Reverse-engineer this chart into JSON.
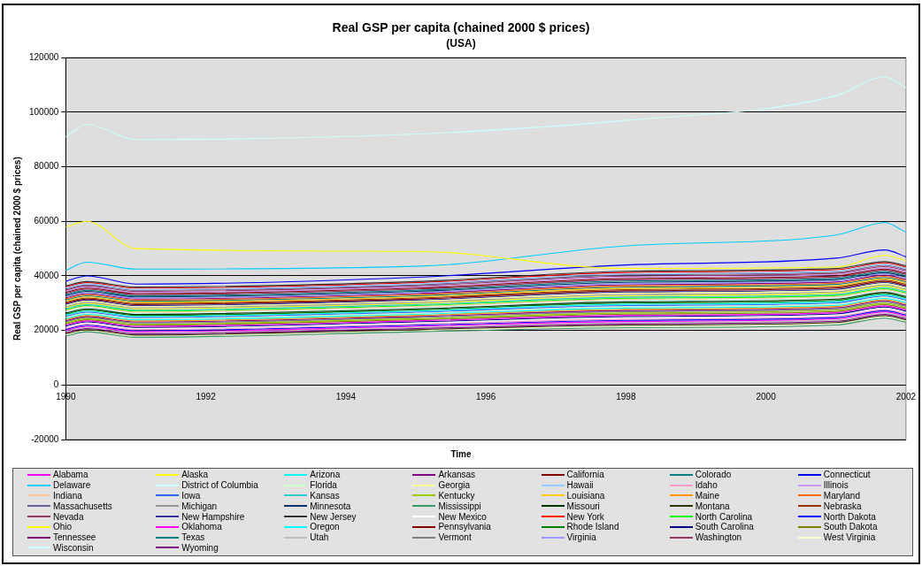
{
  "chart_data": {
    "type": "line",
    "title": "Real GSP per capita (chained 2000 $ prices)",
    "subtitle": "(USA)",
    "xlabel": "Time",
    "ylabel": "Real GSP per capita (chained 2000 $ prices)",
    "x": [
      1990,
      1990.3,
      1991,
      1995,
      1998,
      2001,
      2001.7,
      2002
    ],
    "xlim": [
      1990,
      2002
    ],
    "xticks": [
      1990,
      1992,
      1994,
      1996,
      1998,
      2000,
      2002
    ],
    "ylim": [
      -20000,
      120000
    ],
    "yticks": [
      -20000,
      0,
      20000,
      40000,
      60000,
      80000,
      100000,
      120000
    ],
    "grid": "y",
    "legend": "bottom",
    "marker": "none",
    "line_style": "solid",
    "series": [
      {
        "name": "Alabama",
        "color": "#ff00ff",
        "values": [
          20000,
          21500,
          19500,
          21500,
          23250,
          24250,
          26750,
          25250
        ]
      },
      {
        "name": "Alaska",
        "color": "#ffff00",
        "values": [
          58000,
          60000,
          50000,
          49000,
          42700,
          43200,
          47500,
          45500
        ]
      },
      {
        "name": "Arizona",
        "color": "#00ffff",
        "values": [
          24400,
          25900,
          23900,
          25900,
          28200,
          29200,
          31700,
          30200
        ]
      },
      {
        "name": "Arkansas",
        "color": "#800080",
        "values": [
          19200,
          20700,
          18700,
          20700,
          22350,
          23350,
          25850,
          24350
        ]
      },
      {
        "name": "California",
        "color": "#800000",
        "values": [
          34000,
          35500,
          33500,
          35500,
          39000,
          40000,
          42500,
          41000
        ]
      },
      {
        "name": "Colorado",
        "color": "#008080",
        "values": [
          33200,
          34700,
          32700,
          34700,
          38100,
          39100,
          41600,
          40100
        ]
      },
      {
        "name": "Connecticut",
        "color": "#0000ff",
        "values": [
          38000,
          40000,
          37000,
          39500,
          44000,
          46500,
          49500,
          47000
        ]
      },
      {
        "name": "Delaware",
        "color": "#00ccff",
        "values": [
          42000,
          45000,
          42500,
          43500,
          51000,
          55000,
          59500,
          56000
        ]
      },
      {
        "name": "District of Columbia",
        "color": "#ccffff",
        "values": [
          91000,
          95500,
          90000,
          92000,
          97000,
          106000,
          113000,
          109000
        ]
      },
      {
        "name": "Florida",
        "color": "#ccffcc",
        "values": [
          24800,
          26300,
          24300,
          26300,
          28650,
          29650,
          32150,
          30650
        ]
      },
      {
        "name": "Georgia",
        "color": "#ffff99",
        "values": [
          29200,
          30700,
          28700,
          30700,
          33600,
          34600,
          37100,
          35600
        ]
      },
      {
        "name": "Hawaii",
        "color": "#99ccff",
        "values": [
          35600,
          37100,
          35100,
          37100,
          40800,
          41800,
          44300,
          42800
        ]
      },
      {
        "name": "Idaho",
        "color": "#ff99cc",
        "values": [
          20800,
          22300,
          20300,
          22300,
          24150,
          25150,
          27650,
          26150
        ]
      },
      {
        "name": "Illinois",
        "color": "#cc99ff",
        "values": [
          34400,
          35900,
          33900,
          35900,
          39450,
          40450,
          42950,
          41450
        ]
      },
      {
        "name": "Indiana",
        "color": "#ffcc99",
        "values": [
          27200,
          28700,
          26700,
          28700,
          31350,
          32350,
          34850,
          33350
        ]
      },
      {
        "name": "Iowa",
        "color": "#3366ff",
        "values": [
          25200,
          26700,
          24700,
          26700,
          29100,
          30100,
          32600,
          31100
        ]
      },
      {
        "name": "Kansas",
        "color": "#33cccc",
        "values": [
          28000,
          29500,
          27500,
          29500,
          32250,
          33250,
          35750,
          34250
        ]
      },
      {
        "name": "Kentucky",
        "color": "#99cc00",
        "values": [
          22800,
          24300,
          22300,
          24300,
          26400,
          27400,
          29900,
          28400
        ]
      },
      {
        "name": "Louisiana",
        "color": "#ffcc00",
        "values": [
          30800,
          32300,
          30300,
          32300,
          35400,
          36400,
          38900,
          37400
        ]
      },
      {
        "name": "Maine",
        "color": "#ff9900",
        "values": [
          24000,
          25500,
          23500,
          25500,
          27750,
          28750,
          31250,
          29750
        ]
      },
      {
        "name": "Maryland",
        "color": "#ff6600",
        "values": [
          31600,
          33100,
          31100,
          33100,
          36300,
          37300,
          39800,
          38300
        ]
      },
      {
        "name": "Massachusetts",
        "color": "#666699",
        "values": [
          35200,
          36700,
          34700,
          36700,
          40350,
          41350,
          43850,
          42350
        ]
      },
      {
        "name": "Michigan",
        "color": "#969696",
        "values": [
          28800,
          30300,
          28300,
          30300,
          33150,
          34150,
          36650,
          35150
        ]
      },
      {
        "name": "Minnesota",
        "color": "#003366",
        "values": [
          32800,
          34300,
          32300,
          34300,
          37650,
          38650,
          41150,
          39650
        ]
      },
      {
        "name": "Mississippi",
        "color": "#339966",
        "values": [
          18000,
          19500,
          17500,
          19500,
          21000,
          22000,
          24500,
          23000
        ]
      },
      {
        "name": "Missouri",
        "color": "#003300",
        "values": [
          26400,
          27900,
          25900,
          27900,
          30450,
          31450,
          33950,
          32450
        ]
      },
      {
        "name": "Montana",
        "color": "#333300",
        "values": [
          18800,
          20300,
          18300,
          20300,
          21900,
          22900,
          25400,
          23900
        ]
      },
      {
        "name": "Nebraska",
        "color": "#993300",
        "values": [
          30400,
          31900,
          29900,
          31900,
          34950,
          35950,
          38450,
          36950
        ]
      },
      {
        "name": "Nevada",
        "color": "#993366",
        "values": [
          33600,
          35100,
          33100,
          35100,
          38550,
          39550,
          42050,
          40550
        ]
      },
      {
        "name": "New Hampshire",
        "color": "#333399",
        "values": [
          29600,
          31100,
          29100,
          31100,
          34050,
          35050,
          37550,
          36050
        ]
      },
      {
        "name": "New Jersey",
        "color": "#333333",
        "values": [
          36400,
          37900,
          35900,
          37900,
          41700,
          42700,
          45200,
          43700
        ]
      },
      {
        "name": "New Mexico",
        "color": "#ffffff",
        "values": [
          21200,
          22700,
          20700,
          22700,
          24600,
          25600,
          28100,
          26600
        ]
      },
      {
        "name": "New York",
        "color": "#ff0000",
        "values": [
          36000,
          37500,
          35500,
          37500,
          41250,
          42250,
          44750,
          43250
        ]
      },
      {
        "name": "North Carolina",
        "color": "#00ff00",
        "values": [
          27600,
          29100,
          27100,
          29100,
          31800,
          32800,
          35300,
          33800
        ]
      },
      {
        "name": "North Dakota",
        "color": "#0000ff",
        "values": [
          20400,
          21900,
          19900,
          21900,
          23700,
          24700,
          27200,
          25700
        ]
      },
      {
        "name": "Ohio",
        "color": "#ffff00",
        "values": [
          28400,
          29900,
          27900,
          29900,
          32700,
          33700,
          36200,
          34700
        ]
      },
      {
        "name": "Oklahoma",
        "color": "#ff00ff",
        "values": [
          22000,
          23500,
          21500,
          23500,
          25500,
          26500,
          29000,
          27500
        ]
      },
      {
        "name": "Oregon",
        "color": "#00ffff",
        "values": [
          25600,
          27100,
          25100,
          27100,
          29550,
          30550,
          33050,
          31550
        ]
      },
      {
        "name": "Pennsylvania",
        "color": "#800000",
        "values": [
          30000,
          31500,
          29500,
          31500,
          34500,
          35500,
          38000,
          36500
        ]
      },
      {
        "name": "Rhode Island",
        "color": "#008000",
        "values": [
          26000,
          27500,
          25500,
          27500,
          30000,
          31000,
          33500,
          32000
        ]
      },
      {
        "name": "South Carolina",
        "color": "#000080",
        "values": [
          21600,
          23100,
          21100,
          23100,
          25050,
          26050,
          28550,
          27050
        ]
      },
      {
        "name": "South Dakota",
        "color": "#808000",
        "values": [
          22400,
          23900,
          21900,
          23900,
          25950,
          26950,
          29450,
          27950
        ]
      },
      {
        "name": "Tennessee",
        "color": "#800080",
        "values": [
          23600,
          25100,
          23100,
          25100,
          27300,
          28300,
          30800,
          29300
        ]
      },
      {
        "name": "Texas",
        "color": "#008080",
        "values": [
          31200,
          32700,
          30700,
          32700,
          35850,
          36850,
          39350,
          37850
        ]
      },
      {
        "name": "Utah",
        "color": "#c0c0c0",
        "values": [
          19600,
          21100,
          19100,
          21100,
          22800,
          23800,
          26300,
          24800
        ]
      },
      {
        "name": "Vermont",
        "color": "#808080",
        "values": [
          23200,
          24700,
          22700,
          24700,
          26850,
          27850,
          30350,
          28850
        ]
      },
      {
        "name": "Virginia",
        "color": "#9999ff",
        "values": [
          32400,
          33900,
          31900,
          33900,
          37200,
          38200,
          40700,
          39200
        ]
      },
      {
        "name": "Washington",
        "color": "#993366",
        "values": [
          34800,
          36300,
          34300,
          36300,
          39900,
          40900,
          43400,
          41900
        ]
      },
      {
        "name": "West Virginia",
        "color": "#ffffcc",
        "values": [
          18400,
          19900,
          17900,
          19900,
          21450,
          22450,
          24950,
          23450
        ]
      },
      {
        "name": "Wisconsin",
        "color": "#ccffff",
        "values": [
          26800,
          28300,
          26300,
          28300,
          30900,
          31900,
          34400,
          32900
        ]
      },
      {
        "name": "Wyoming",
        "color": "#800080",
        "values": [
          32000,
          33500,
          31500,
          33500,
          36750,
          37750,
          40250,
          38750
        ]
      }
    ]
  }
}
